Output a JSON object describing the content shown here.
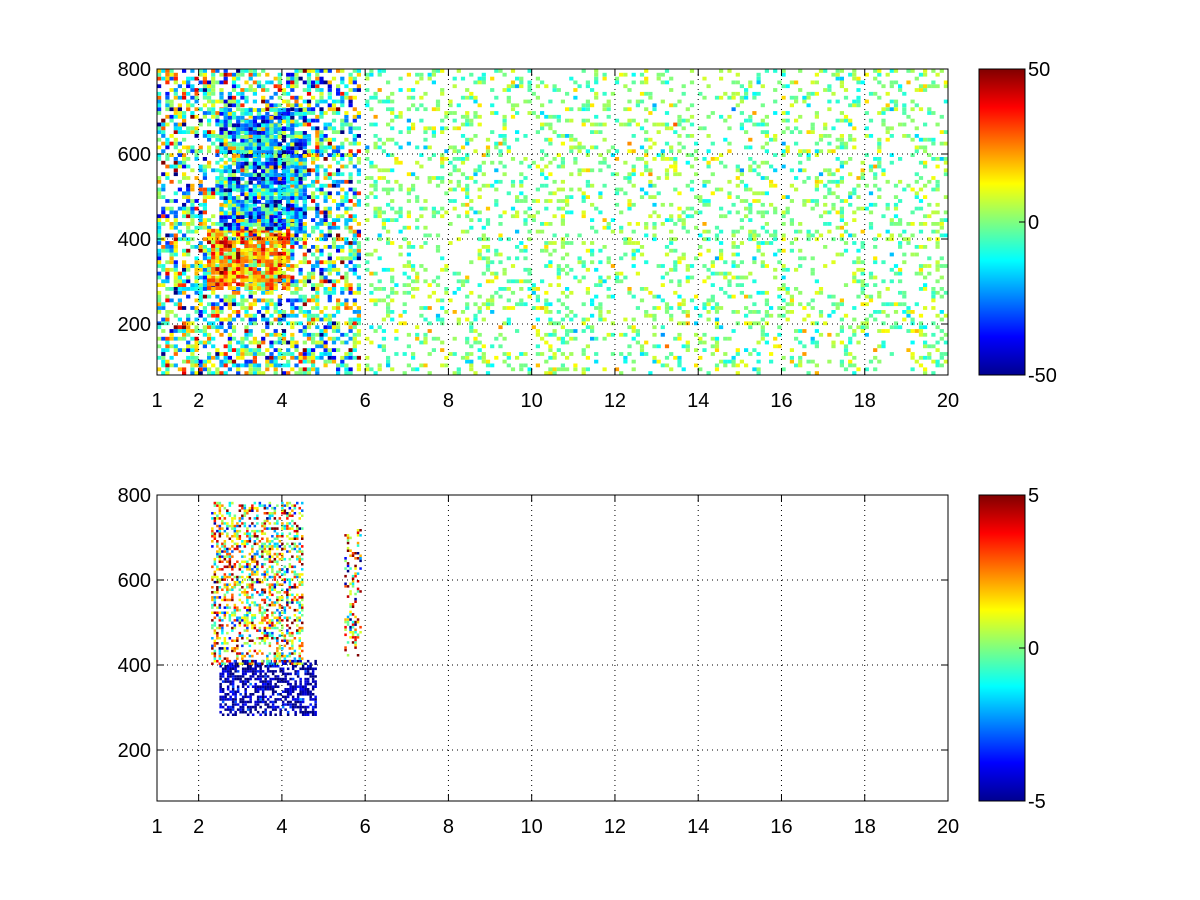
{
  "chart_data": [
    {
      "type": "heatmap",
      "x_ticks": [
        1,
        2,
        4,
        6,
        8,
        10,
        12,
        14,
        16,
        18,
        20
      ],
      "xlim": [
        1,
        20
      ],
      "y_ticks": [
        200,
        400,
        600,
        800
      ],
      "ylim": [
        80,
        800
      ],
      "grid": true,
      "colormap": "jet",
      "clim": [
        -50,
        50
      ],
      "colorbar_ticks": [
        -50,
        0,
        50
      ],
      "colorbar_tick_labels": [
        "-50",
        "0",
        "50"
      ],
      "x_tick_labels": [
        "1",
        "2",
        "4",
        "6",
        "8",
        "10",
        "12",
        "14",
        "16",
        "18",
        "20"
      ],
      "y_tick_labels": [
        "200",
        "400",
        "600",
        "800"
      ],
      "regions": [
        {
          "x": [
            1,
            5.8
          ],
          "y": [
            80,
            800
          ],
          "density": 0.55,
          "mean": -5,
          "spread": 22
        },
        {
          "x": [
            2.2,
            4.2
          ],
          "y": [
            280,
            420
          ],
          "density": 0.85,
          "mean": 22,
          "spread": 12
        },
        {
          "x": [
            2.5,
            4.5
          ],
          "y": [
            420,
            700
          ],
          "density": 0.8,
          "mean": -20,
          "spread": 18
        },
        {
          "x": [
            6,
            20
          ],
          "y": [
            80,
            800
          ],
          "density": 0.22,
          "mean": 0,
          "spread": 8
        }
      ]
    },
    {
      "type": "heatmap",
      "x_ticks": [
        1,
        2,
        4,
        6,
        8,
        10,
        12,
        14,
        16,
        18,
        20
      ],
      "xlim": [
        1,
        20
      ],
      "y_ticks": [
        200,
        400,
        600,
        800
      ],
      "ylim": [
        80,
        800
      ],
      "grid": true,
      "colormap": "jet",
      "clim": [
        -5,
        5
      ],
      "colorbar_ticks": [
        -5,
        0,
        5
      ],
      "colorbar_tick_labels": [
        "-5",
        "0",
        "5"
      ],
      "x_tick_labels": [
        "1",
        "2",
        "4",
        "6",
        "8",
        "10",
        "12",
        "14",
        "16",
        "18",
        "20"
      ],
      "y_tick_labels": [
        "200",
        "400",
        "600",
        "800"
      ],
      "regions": [
        {
          "x": [
            2.5,
            4.8
          ],
          "y": [
            280,
            410
          ],
          "density": 0.6,
          "mean": -4.5,
          "spread": 0.8
        },
        {
          "x": [
            2.3,
            4.5
          ],
          "y": [
            400,
            780
          ],
          "density": 0.45,
          "mean": 1,
          "spread": 2.5
        },
        {
          "x": [
            5.5,
            5.9
          ],
          "y": [
            420,
            720
          ],
          "density": 0.35,
          "mean": 1,
          "spread": 3
        }
      ]
    }
  ]
}
